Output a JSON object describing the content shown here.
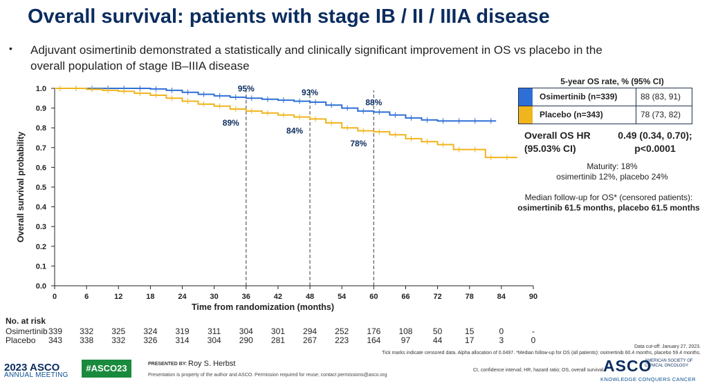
{
  "slide": {
    "title": "Overall survival: patients with stage IB / II / IIIA disease",
    "bullet_line1": "Adjuvant osimertinib demonstrated a statistically and clinically significant improvement in OS vs placebo in the",
    "bullet_line2": "overall population of stage IB–IIIA disease"
  },
  "chart_data": {
    "type": "line",
    "title": "",
    "xlabel": "Time from randomization (months)",
    "ylabel": "Overall survival probability",
    "xlim": [
      0,
      90
    ],
    "ylim": [
      0.0,
      1.0
    ],
    "xticks": [
      0,
      6,
      12,
      18,
      24,
      30,
      36,
      42,
      48,
      54,
      60,
      66,
      72,
      78,
      84,
      90
    ],
    "yticks": [
      0.0,
      0.1,
      0.2,
      0.3,
      0.4,
      0.5,
      0.6,
      0.7,
      0.8,
      0.9,
      1.0
    ],
    "ytick_labels": [
      "0.0",
      "0.1",
      "0.2",
      "0.3",
      "0.4",
      "0.5",
      "0.6",
      "0.7",
      "0.8",
      "0.9",
      "1.0"
    ],
    "reference_lines_x": [
      36,
      48,
      60
    ],
    "series": [
      {
        "name": "Osimertinib (n=339)",
        "color": "#2e6fd6",
        "x": [
          0,
          3,
          6,
          9,
          12,
          15,
          18,
          21,
          24,
          27,
          30,
          33,
          36,
          39,
          42,
          45,
          48,
          51,
          54,
          57,
          60,
          63,
          66,
          69,
          72,
          75,
          78,
          81,
          83
        ],
        "y": [
          1.0,
          1.0,
          1.0,
          1.0,
          1.0,
          1.0,
          0.997,
          0.99,
          0.98,
          0.97,
          0.962,
          0.955,
          0.95,
          0.945,
          0.94,
          0.935,
          0.93,
          0.915,
          0.9,
          0.885,
          0.88,
          0.865,
          0.85,
          0.84,
          0.835,
          0.835,
          0.835,
          0.835,
          0.835
        ]
      },
      {
        "name": "Placebo (n=343)",
        "color": "#f0b41c",
        "x": [
          0,
          3,
          6,
          9,
          12,
          15,
          18,
          21,
          24,
          27,
          30,
          33,
          36,
          39,
          42,
          45,
          48,
          51,
          54,
          57,
          60,
          63,
          66,
          69,
          72,
          75,
          78,
          81,
          84,
          87
        ],
        "y": [
          1.0,
          1.0,
          0.995,
          0.99,
          0.985,
          0.975,
          0.965,
          0.95,
          0.935,
          0.92,
          0.91,
          0.895,
          0.885,
          0.875,
          0.865,
          0.855,
          0.845,
          0.825,
          0.8,
          0.785,
          0.78,
          0.765,
          0.745,
          0.73,
          0.715,
          0.69,
          0.69,
          0.65,
          0.65,
          0.65
        ]
      }
    ],
    "annotations": {
      "osi": [
        {
          "x": 36,
          "label": "95%"
        },
        {
          "x": 48,
          "label": "93%"
        },
        {
          "x": 60,
          "label": "88%"
        }
      ],
      "pbo": [
        {
          "x": 36,
          "label": "89%"
        },
        {
          "x": 48,
          "label": "84%"
        },
        {
          "x": 60,
          "label": "78%"
        }
      ]
    }
  },
  "at_risk": {
    "title": "No. at risk",
    "rows": [
      {
        "label": "Osimertinib",
        "values": [
          "339",
          "332",
          "325",
          "324",
          "319",
          "311",
          "304",
          "301",
          "294",
          "252",
          "176",
          "108",
          "50",
          "15",
          "0",
          "-"
        ]
      },
      {
        "label": "Placebo",
        "values": [
          "343",
          "338",
          "332",
          "326",
          "314",
          "304",
          "290",
          "281",
          "267",
          "223",
          "164",
          "97",
          "44",
          "17",
          "3",
          "0"
        ]
      }
    ]
  },
  "os_table": {
    "title": "5-year OS rate, % (95% CI)",
    "rows": [
      {
        "label": "Osimertinib (n=339)",
        "value": "88 (83, 91)",
        "color": "#2e6fd6"
      },
      {
        "label": "Placebo (n=343)",
        "value": "78 (73, 82)",
        "color": "#f0b41c"
      }
    ]
  },
  "hr": {
    "label_line1": "Overall OS HR",
    "label_line2": "(95.03% CI)",
    "value_line1": "0.49 (0.34, 0.70);",
    "value_line2": "p<0.0001"
  },
  "maturity": {
    "line1": "Maturity: 18%",
    "line2": "osimertinib 12%, placebo 24%"
  },
  "followup": {
    "line1": "Median follow-up for OS* (censored patients):",
    "line2": "osimertinib 61.5 months, placebo 61.5 months"
  },
  "footnotes": {
    "cutoff": "Data cut-off: January 27, 2023.",
    "ticks": "Tick marks indicate censored data. Alpha allocation of 0.0497. *Median follow-up for OS (all patients): osimertinib 60.4 months, placebo 59.4 months.",
    "abbrev": "CI, confidence interval; HR, hazard ratio; OS, overall survival"
  },
  "footer": {
    "year_logo": "2023 ASCO",
    "annual": "ANNUAL MEETING",
    "hashtag": "#ASCO23",
    "presented_by": "PRESENTED BY:",
    "presenter": "Roy S. Herbst",
    "property": "Presentation is property of the author and ASCO. Permission required for reuse; contact permissions@asco.org",
    "asco": "ASCO",
    "asco_sub1": "AMERICAN SOCIETY OF",
    "asco_sub2": "CLINICAL ONCOLOGY",
    "asco_tag": "KNOWLEDGE CONQUERS CANCER"
  },
  "colors": {
    "title": "#0b2c5f",
    "osi": "#2e6fd6",
    "pbo": "#f0b41c",
    "hashtag_bg": "#1a8a3d"
  }
}
